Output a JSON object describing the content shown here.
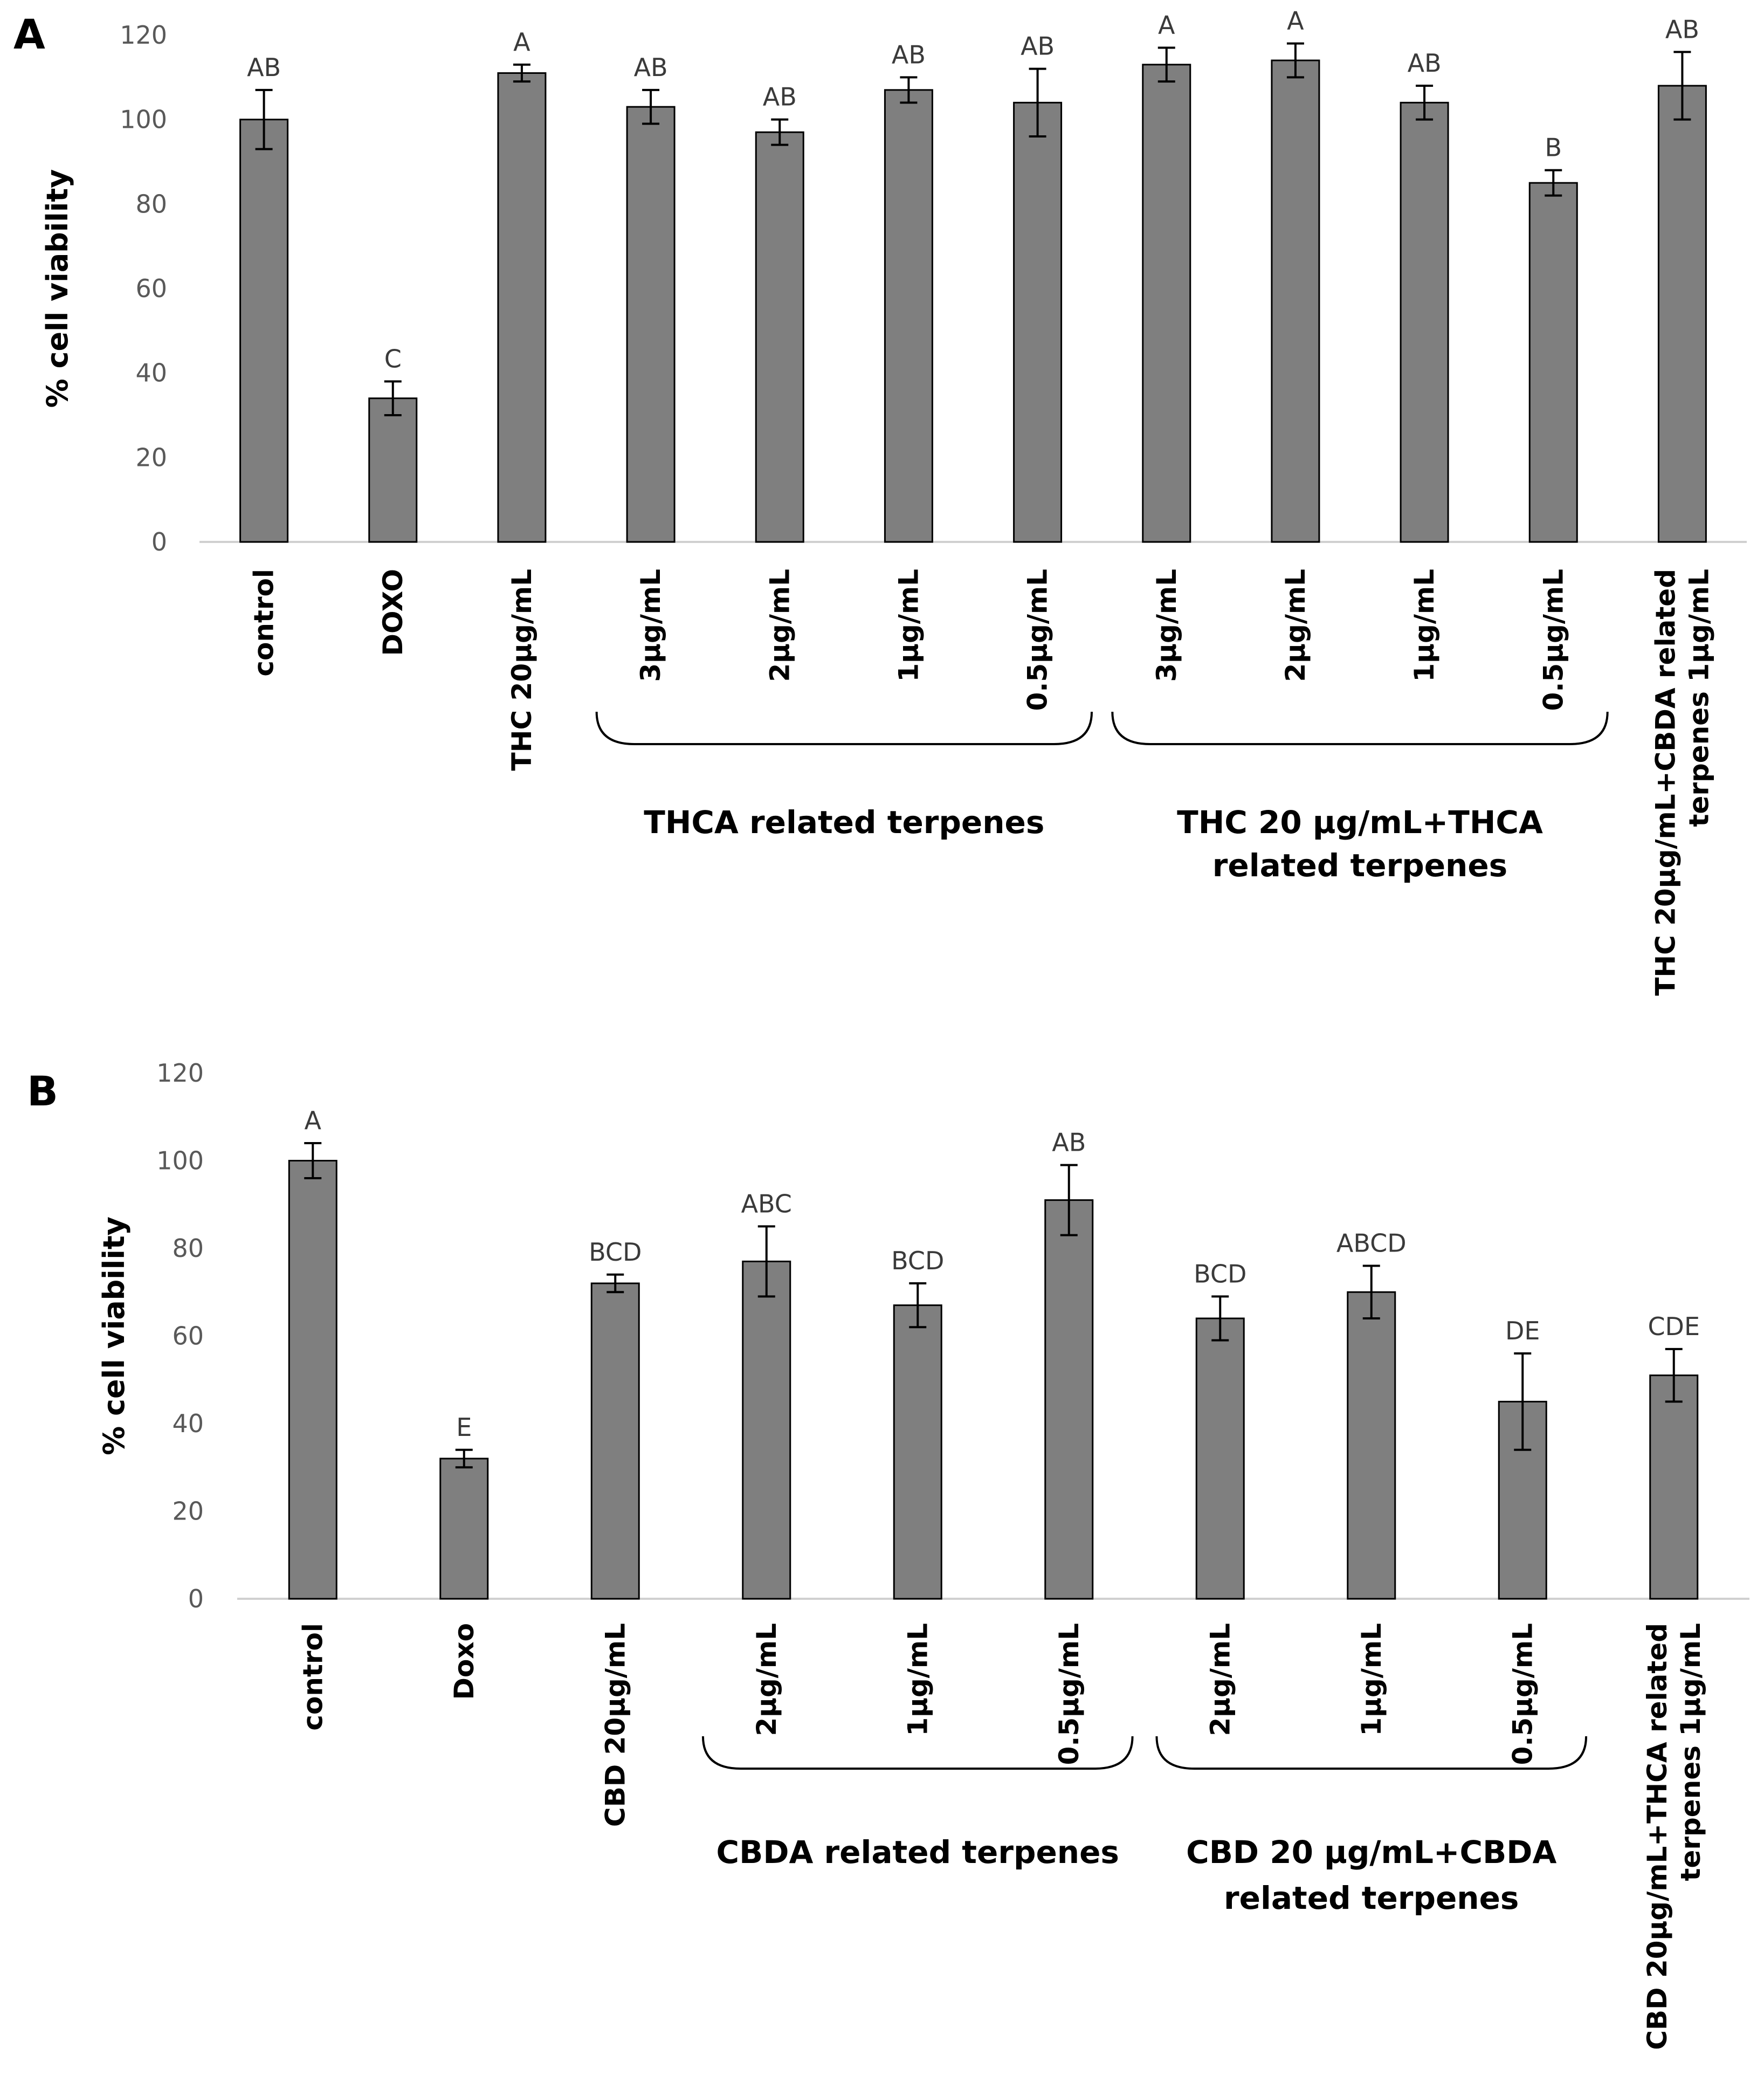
{
  "chart_data": [
    {
      "type": "bar",
      "panel_label": "A",
      "ylabel": "% cell viability",
      "ylim": [
        0,
        120
      ],
      "yticks": [
        0,
        20,
        40,
        60,
        80,
        100,
        120
      ],
      "categories": [
        "control",
        "DOXO",
        "THC 20µg/mL",
        "3µg/mL",
        "2µg/mL",
        "1µg/mL",
        "0.5µg/mL",
        "3µg/mL",
        "2µg/mL",
        "1µg/mL",
        "0.5µg/mL",
        "THC 20µg/mL+CBDA related|terpenes 1µg/mL"
      ],
      "values": [
        100,
        34,
        111,
        103,
        97,
        107,
        104,
        113,
        114,
        104,
        85,
        108
      ],
      "errors": [
        7,
        4,
        2,
        4,
        3,
        3,
        8,
        4,
        4,
        4,
        3,
        8
      ],
      "significance": [
        "AB",
        "C",
        "A",
        "AB",
        "AB",
        "AB",
        "AB",
        "A",
        "A",
        "AB",
        "B",
        "AB"
      ],
      "groups": [
        {
          "label": "THCA related terpenes",
          "from": 3,
          "to": 6
        },
        {
          "label": "THC 20 µg/mL+THCA|related terpenes",
          "from": 7,
          "to": 10
        }
      ],
      "bar_color": "#7f7f7f"
    },
    {
      "type": "bar",
      "panel_label": "B",
      "ylabel": "% cell viability",
      "ylim": [
        0,
        120
      ],
      "yticks": [
        0,
        20,
        40,
        60,
        80,
        100,
        120
      ],
      "categories": [
        "control",
        "Doxo",
        "CBD 20µg/mL",
        "2µg/mL",
        "1µg/mL",
        "0.5µg/mL",
        "2µg/mL",
        "1µg/mL",
        "0.5µg/mL",
        "CBD 20µg/mL+THCA related|terpenes 1µg/mL"
      ],
      "values": [
        100,
        32,
        72,
        77,
        67,
        91,
        64,
        70,
        45,
        51
      ],
      "errors": [
        4,
        2,
        2,
        8,
        5,
        8,
        5,
        6,
        11,
        6
      ],
      "significance": [
        "A",
        "E",
        "BCD",
        "ABC",
        "BCD",
        "AB",
        "BCD",
        "ABCD",
        "DE",
        "CDE"
      ],
      "groups": [
        {
          "label": "CBDA related terpenes",
          "from": 3,
          "to": 5
        },
        {
          "label": "CBD 20 µg/mL+CBDA|related terpenes",
          "from": 6,
          "to": 8
        }
      ],
      "bar_color": "#7f7f7f"
    }
  ]
}
